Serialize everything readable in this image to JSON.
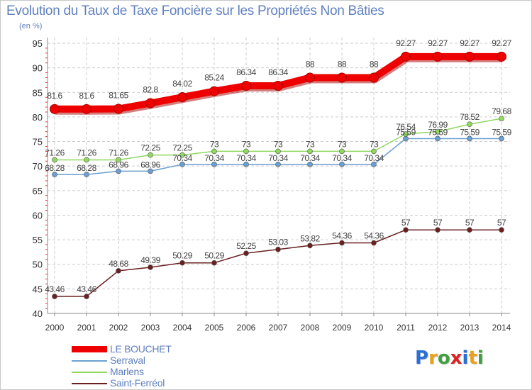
{
  "title": "Evolution du Taux de Taxe Foncière sur les Propriétés Non Bâties",
  "subtitle": "(en %)",
  "logo": {
    "letters": [
      "P",
      "r",
      "o",
      "x",
      "i",
      "t",
      "i"
    ],
    "colors": [
      "#2a6fd6",
      "#e8a020",
      "#40a040",
      "#e02020",
      "#2a6fd6",
      "#e8a020",
      "#40a040"
    ]
  },
  "chart_data": {
    "type": "line",
    "x": [
      "2000",
      "2001",
      "2002",
      "2003",
      "2004",
      "2005",
      "2006",
      "2007",
      "2008",
      "2009",
      "2010",
      "2011",
      "2012",
      "2013",
      "2014"
    ],
    "ylim": [
      40,
      95
    ],
    "yticks": [
      "40",
      "45",
      "50",
      "55",
      "60",
      "65",
      "70",
      "75",
      "80",
      "85",
      "90",
      "95"
    ],
    "grid": true,
    "legend": "bottom-left",
    "series": [
      {
        "name": "LE BOUCHET",
        "color": "#ee0000",
        "values": [
          81.6,
          81.6,
          81.65,
          82.8,
          84.02,
          85.24,
          86.34,
          86.34,
          88,
          88,
          88,
          92.27,
          92.27,
          92.27,
          92.27
        ],
        "labels": [
          "81.6",
          "81.6",
          "81.65",
          "82.8",
          "84.02",
          "85.24",
          "86.34",
          "86.34",
          "88",
          "88",
          "88",
          "92.27",
          "92.27",
          "92.27",
          "92.27"
        ]
      },
      {
        "name": "Serraval",
        "color": "#6a9fd0",
        "values": [
          68.28,
          68.28,
          68.96,
          68.96,
          70.34,
          70.34,
          70.34,
          70.34,
          70.34,
          70.34,
          70.34,
          75.59,
          75.59,
          75.59,
          75.59
        ],
        "labels": [
          "68.28",
          "68.28",
          "68.96",
          "68.96",
          "70.34",
          "70.34",
          "70.34",
          "70.34",
          "70.34",
          "70.34",
          "70.34",
          "75.59",
          "75.59",
          "75.59",
          "75.59"
        ]
      },
      {
        "name": "Marlens",
        "color": "#90d860",
        "values": [
          71.26,
          71.26,
          71.26,
          72.25,
          72.25,
          73,
          73,
          73,
          73,
          73,
          73,
          76.54,
          76.99,
          78.52,
          79.68
        ],
        "labels": [
          "71.26",
          "71.26",
          "71.26",
          "72.25",
          "72.25",
          "73",
          "73",
          "73",
          "73",
          "73",
          "73",
          "76.54",
          "76.99",
          "78.52",
          "79.68"
        ]
      },
      {
        "name": "Saint-Ferréol",
        "color": "#6a2020",
        "values": [
          43.46,
          43.46,
          48.68,
          49.39,
          50.29,
          50.29,
          52.25,
          53.03,
          53.82,
          54.36,
          54.36,
          57,
          57,
          57,
          57
        ],
        "labels": [
          "43.46",
          "43.46",
          "48.68",
          "49.39",
          "50.29",
          "50.29",
          "52.25",
          "53.03",
          "53.82",
          "54.36",
          "54.36",
          "57",
          "57",
          "57",
          "57"
        ]
      }
    ]
  }
}
